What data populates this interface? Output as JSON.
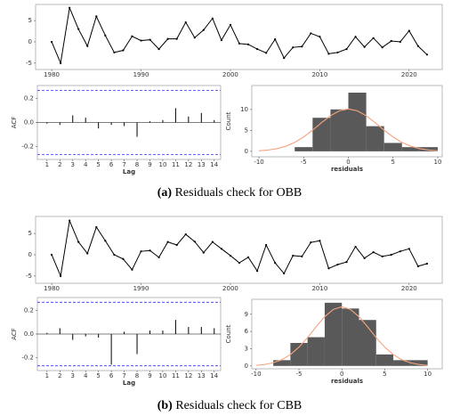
{
  "chart_data": [
    {
      "type": "line",
      "color": "#000000",
      "x": [
        1980,
        1981,
        1982,
        1983,
        1984,
        1985,
        1986,
        1987,
        1988,
        1989,
        1990,
        1991,
        1992,
        1993,
        1994,
        1995,
        1996,
        1997,
        1998,
        1999,
        2000,
        2001,
        2002,
        2003,
        2004,
        2005,
        2006,
        2007,
        2008,
        2009,
        2010,
        2011,
        2012,
        2013,
        2014,
        2015,
        2016,
        2017,
        2018,
        2019,
        2020,
        2021,
        2022
      ],
      "values": [
        0,
        -5,
        8,
        3,
        -1,
        6,
        1.5,
        -2.5,
        -2,
        1.3,
        0.3,
        0.5,
        -1.7,
        0.7,
        0.7,
        4.6,
        1,
        2.8,
        5.5,
        0.4,
        4,
        -0.4,
        -0.6,
        -1.7,
        -2.6,
        0.6,
        -3.8,
        -1.3,
        -1.1,
        2,
        1.2,
        -2.8,
        -2.5,
        -1.7,
        1.2,
        -1.2,
        0.9,
        -1.3,
        0.2,
        0,
        2.6,
        -1,
        -3
      ],
      "xlim": [
        1978.2,
        2023.7
      ],
      "xticks": [
        1980,
        1990,
        2000,
        2010,
        2020
      ],
      "ylim": [
        -6.5,
        8.8
      ],
      "yticks": [
        -5,
        0,
        5
      ]
    },
    {
      "type": "bar",
      "color": "#000000",
      "xlabel": "Lag",
      "ylabel": "ACF",
      "x": [
        1,
        2,
        3,
        4,
        5,
        6,
        7,
        8,
        9,
        10,
        11,
        12,
        13,
        14
      ],
      "values": [
        -0.01,
        -0.02,
        0.06,
        0.04,
        -0.05,
        -0.02,
        -0.03,
        -0.12,
        0.01,
        0.02,
        0.12,
        0.05,
        0.08,
        0.02
      ],
      "ci": [
        -0.27,
        0.27
      ],
      "ci_color": "#3333ff",
      "xlim": [
        0.25,
        14.5
      ],
      "xticks": [
        1,
        2,
        3,
        4,
        5,
        6,
        7,
        8,
        9,
        10,
        11,
        12,
        13,
        14
      ],
      "ylim": [
        -0.31,
        0.31
      ],
      "yticks": [
        {
          "value": -0.2,
          "label": "-0.2"
        },
        {
          "value": 0,
          "label": "0.0"
        },
        {
          "value": 0.2,
          "label": "0.2"
        }
      ]
    },
    {
      "type": "histogram",
      "color": "#595959",
      "xlabel": "residuals",
      "ylabel": "Count",
      "bins": [
        -6,
        -4,
        -2,
        0,
        2,
        4,
        6,
        8,
        10
      ],
      "counts": [
        1,
        8,
        10,
        14,
        6,
        2,
        1,
        1
      ],
      "density": {
        "color": "#f4a582",
        "x": [
          -10,
          -9,
          -8,
          -7,
          -6,
          -5,
          -4,
          -3,
          -2,
          -1,
          0,
          1,
          2,
          3,
          4,
          5,
          6,
          7,
          8,
          9,
          10
        ],
        "y": [
          0.13,
          0.31,
          0.63,
          1.21,
          2.13,
          3.43,
          5.05,
          6.85,
          8.49,
          9.67,
          10.1,
          9.67,
          8.49,
          6.85,
          5.05,
          3.43,
          2.13,
          1.21,
          0.63,
          0.31,
          0.13
        ]
      },
      "xlim": [
        -10.8,
        10.5
      ],
      "xticks": [
        -10,
        -5,
        0,
        5,
        10
      ],
      "ylim": [
        -1.3,
        15.7
      ],
      "yticks": [
        0,
        5,
        10
      ]
    },
    {
      "type": "line",
      "color": "#000000",
      "x": [
        1980,
        1981,
        1982,
        1983,
        1984,
        1985,
        1986,
        1987,
        1988,
        1989,
        1990,
        1991,
        1992,
        1993,
        1994,
        1995,
        1996,
        1997,
        1998,
        1999,
        2000,
        2001,
        2002,
        2003,
        2004,
        2005,
        2006,
        2007,
        2008,
        2009,
        2010,
        2011,
        2012,
        2013,
        2014,
        2015,
        2016,
        2017,
        2018,
        2019,
        2020,
        2021,
        2022
      ],
      "values": [
        0,
        -5,
        8,
        3,
        0.3,
        6.5,
        3.3,
        0,
        -1,
        -3.5,
        0.8,
        1,
        -0.6,
        3,
        2.3,
        4.8,
        3.1,
        0.5,
        3,
        1.4,
        -0.2,
        -1.9,
        -0.6,
        -3.8,
        2.3,
        -1.9,
        -4.4,
        -0.2,
        -0.4,
        2.9,
        3.3,
        -3.2,
        -2.3,
        -1.7,
        1.9,
        -0.8,
        0.6,
        -0.4,
        0,
        0.8,
        1.4,
        -2.7,
        -2.1
      ],
      "xlim": [
        1978.2,
        2023.7
      ],
      "xticks": [
        1980,
        1990,
        2000,
        2010,
        2020
      ],
      "ylim": [
        -6.7,
        9
      ],
      "yticks": [
        -5,
        0,
        5
      ]
    },
    {
      "type": "bar",
      "color": "#000000",
      "xlabel": "Lag",
      "ylabel": "ACF",
      "x": [
        1,
        2,
        3,
        4,
        5,
        6,
        7,
        8,
        9,
        10,
        11,
        12,
        13,
        14
      ],
      "values": [
        0.01,
        0.05,
        -0.05,
        -0.02,
        -0.03,
        -0.26,
        0.02,
        -0.17,
        0.03,
        0.03,
        0.12,
        0.06,
        0.06,
        0.05
      ],
      "ci": [
        -0.27,
        0.27
      ],
      "ci_color": "#3333ff",
      "xlim": [
        0.25,
        14.5
      ],
      "xticks": [
        1,
        2,
        3,
        4,
        5,
        6,
        7,
        8,
        9,
        10,
        11,
        12,
        13,
        14
      ],
      "ylim": [
        -0.31,
        0.31
      ],
      "yticks": [
        {
          "value": -0.2,
          "label": "-0.2"
        },
        {
          "value": 0,
          "label": "0.0"
        },
        {
          "value": 0.2,
          "label": "0.2"
        }
      ]
    },
    {
      "type": "histogram",
      "color": "#595959",
      "xlabel": "residuals",
      "ylabel": "Count",
      "bins": [
        -8,
        -6,
        -4,
        -2,
        0,
        2,
        4,
        6,
        8,
        10
      ],
      "counts": [
        1,
        4,
        5,
        11,
        10,
        8,
        2,
        1,
        1
      ],
      "density": {
        "color": "#f4a582",
        "x": [
          -10,
          -9,
          -8,
          -7,
          -6,
          -5,
          -4,
          -3,
          -2,
          -1,
          0,
          1,
          2,
          3,
          4,
          5,
          6,
          7,
          8,
          9,
          10
        ],
        "y": [
          0.1,
          0.25,
          0.55,
          1.08,
          1.97,
          3.27,
          4.94,
          6.81,
          8.57,
          9.84,
          10.3,
          9.84,
          8.57,
          6.81,
          4.94,
          3.27,
          1.97,
          1.08,
          0.55,
          0.25,
          0.1
        ]
      },
      "xlim": [
        -10.5,
        11.7
      ],
      "xticks": [
        -10,
        -5,
        0,
        5,
        10
      ],
      "ylim": [
        -0.5,
        11.6
      ],
      "yticks": [
        0,
        3,
        6,
        9
      ]
    }
  ],
  "captions": [
    {
      "label": "(a)",
      "text": "Residuals check for OBB"
    },
    {
      "label": "(b)",
      "text": "Residuals check for CBB"
    }
  ]
}
